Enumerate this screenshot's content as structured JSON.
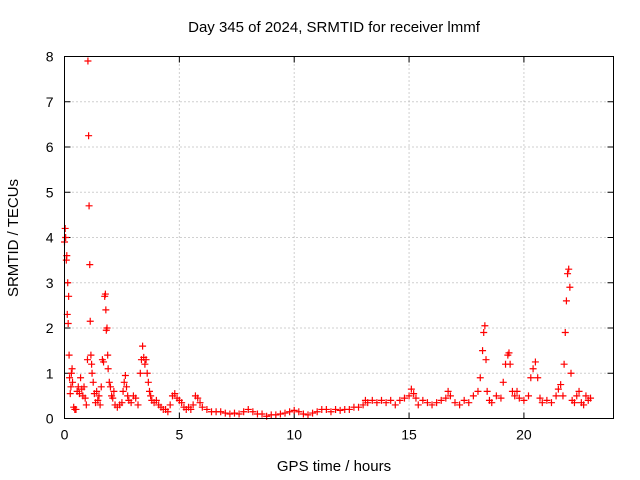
{
  "chart_data": {
    "type": "scatter",
    "title": "Day 345 of 2024, SRMTID for receiver lmmf",
    "xlabel": "GPS time / hours",
    "ylabel": "SRMTID / TECUs",
    "xlim": [
      0,
      23.9
    ],
    "ylim": [
      0,
      8
    ],
    "xticks": [
      0,
      5,
      10,
      15,
      20
    ],
    "yticks": [
      0,
      1,
      2,
      3,
      4,
      5,
      6,
      7,
      8
    ],
    "grid": true,
    "marker": "+",
    "series": [
      {
        "name": "SRMTID",
        "color": "#ff0000",
        "points": [
          [
            0.0,
            3.9
          ],
          [
            0.03,
            4.2
          ],
          [
            0.05,
            4.0
          ],
          [
            0.08,
            3.5
          ],
          [
            0.1,
            3.6
          ],
          [
            0.12,
            2.3
          ],
          [
            0.14,
            3.0
          ],
          [
            0.16,
            2.1
          ],
          [
            0.18,
            2.7
          ],
          [
            0.2,
            1.4
          ],
          [
            0.22,
            0.9
          ],
          [
            0.25,
            0.55
          ],
          [
            0.28,
            0.7
          ],
          [
            0.3,
            1.0
          ],
          [
            0.33,
            1.1
          ],
          [
            0.35,
            0.8
          ],
          [
            0.4,
            0.25
          ],
          [
            0.45,
            0.2
          ],
          [
            0.5,
            0.2
          ],
          [
            0.55,
            0.6
          ],
          [
            0.6,
            0.7
          ],
          [
            0.65,
            0.55
          ],
          [
            0.7,
            0.9
          ],
          [
            0.75,
            0.65
          ],
          [
            0.8,
            0.5
          ],
          [
            0.85,
            0.7
          ],
          [
            0.9,
            0.45
          ],
          [
            0.95,
            0.3
          ],
          [
            1.0,
            1.3
          ],
          [
            1.02,
            7.9
          ],
          [
            1.05,
            6.25
          ],
          [
            1.07,
            4.7
          ],
          [
            1.1,
            3.4
          ],
          [
            1.12,
            2.15
          ],
          [
            1.15,
            1.4
          ],
          [
            1.18,
            1.2
          ],
          [
            1.2,
            1.0
          ],
          [
            1.25,
            0.8
          ],
          [
            1.3,
            0.55
          ],
          [
            1.35,
            0.35
          ],
          [
            1.4,
            0.6
          ],
          [
            1.45,
            0.4
          ],
          [
            1.5,
            0.5
          ],
          [
            1.55,
            0.3
          ],
          [
            1.6,
            0.7
          ],
          [
            1.65,
            1.3
          ],
          [
            1.7,
            1.25
          ],
          [
            1.75,
            2.7
          ],
          [
            1.78,
            2.75
          ],
          [
            1.8,
            2.4
          ],
          [
            1.82,
            1.95
          ],
          [
            1.85,
            2.0
          ],
          [
            1.88,
            1.4
          ],
          [
            1.9,
            1.1
          ],
          [
            1.95,
            0.8
          ],
          [
            2.0,
            0.7
          ],
          [
            2.05,
            0.5
          ],
          [
            2.1,
            0.45
          ],
          [
            2.15,
            0.6
          ],
          [
            2.2,
            0.3
          ],
          [
            2.3,
            0.25
          ],
          [
            2.4,
            0.3
          ],
          [
            2.5,
            0.35
          ],
          [
            2.55,
            0.6
          ],
          [
            2.6,
            0.8
          ],
          [
            2.65,
            0.95
          ],
          [
            2.7,
            0.7
          ],
          [
            2.75,
            0.5
          ],
          [
            2.8,
            0.4
          ],
          [
            2.9,
            0.35
          ],
          [
            3.0,
            0.5
          ],
          [
            3.1,
            0.45
          ],
          [
            3.2,
            0.3
          ],
          [
            3.3,
            1.0
          ],
          [
            3.35,
            1.3
          ],
          [
            3.4,
            1.6
          ],
          [
            3.45,
            1.35
          ],
          [
            3.5,
            1.2
          ],
          [
            3.55,
            1.3
          ],
          [
            3.6,
            1.0
          ],
          [
            3.65,
            0.8
          ],
          [
            3.7,
            0.6
          ],
          [
            3.75,
            0.5
          ],
          [
            3.8,
            0.4
          ],
          [
            3.9,
            0.35
          ],
          [
            4.0,
            0.4
          ],
          [
            4.1,
            0.3
          ],
          [
            4.2,
            0.25
          ],
          [
            4.3,
            0.2
          ],
          [
            4.4,
            0.2
          ],
          [
            4.5,
            0.15
          ],
          [
            4.6,
            0.3
          ],
          [
            4.7,
            0.5
          ],
          [
            4.8,
            0.55
          ],
          [
            4.9,
            0.45
          ],
          [
            5.0,
            0.4
          ],
          [
            5.1,
            0.35
          ],
          [
            5.2,
            0.25
          ],
          [
            5.3,
            0.2
          ],
          [
            5.4,
            0.25
          ],
          [
            5.5,
            0.2
          ],
          [
            5.6,
            0.3
          ],
          [
            5.7,
            0.5
          ],
          [
            5.8,
            0.45
          ],
          [
            5.9,
            0.35
          ],
          [
            6.0,
            0.25
          ],
          [
            6.2,
            0.2
          ],
          [
            6.4,
            0.15
          ],
          [
            6.6,
            0.15
          ],
          [
            6.8,
            0.15
          ],
          [
            7.0,
            0.12
          ],
          [
            7.2,
            0.1
          ],
          [
            7.4,
            0.12
          ],
          [
            7.6,
            0.1
          ],
          [
            7.8,
            0.15
          ],
          [
            8.0,
            0.2
          ],
          [
            8.2,
            0.15
          ],
          [
            8.4,
            0.1
          ],
          [
            8.6,
            0.1
          ],
          [
            8.8,
            0.05
          ],
          [
            9.0,
            0.08
          ],
          [
            9.2,
            0.08
          ],
          [
            9.4,
            0.1
          ],
          [
            9.6,
            0.12
          ],
          [
            9.8,
            0.15
          ],
          [
            10.0,
            0.18
          ],
          [
            10.2,
            0.15
          ],
          [
            10.4,
            0.1
          ],
          [
            10.6,
            0.08
          ],
          [
            10.8,
            0.12
          ],
          [
            11.0,
            0.15
          ],
          [
            11.2,
            0.2
          ],
          [
            11.4,
            0.2
          ],
          [
            11.6,
            0.15
          ],
          [
            11.8,
            0.2
          ],
          [
            12.0,
            0.18
          ],
          [
            12.2,
            0.2
          ],
          [
            12.4,
            0.2
          ],
          [
            12.6,
            0.25
          ],
          [
            12.8,
            0.25
          ],
          [
            13.0,
            0.3
          ],
          [
            13.1,
            0.4
          ],
          [
            13.2,
            0.35
          ],
          [
            13.4,
            0.4
          ],
          [
            13.6,
            0.35
          ],
          [
            13.8,
            0.4
          ],
          [
            14.0,
            0.35
          ],
          [
            14.2,
            0.4
          ],
          [
            14.4,
            0.3
          ],
          [
            14.6,
            0.4
          ],
          [
            14.8,
            0.45
          ],
          [
            15.0,
            0.5
          ],
          [
            15.1,
            0.65
          ],
          [
            15.2,
            0.55
          ],
          [
            15.3,
            0.45
          ],
          [
            15.4,
            0.3
          ],
          [
            15.6,
            0.4
          ],
          [
            15.8,
            0.35
          ],
          [
            16.0,
            0.3
          ],
          [
            16.2,
            0.35
          ],
          [
            16.4,
            0.4
          ],
          [
            16.6,
            0.45
          ],
          [
            16.7,
            0.6
          ],
          [
            16.8,
            0.5
          ],
          [
            17.0,
            0.35
          ],
          [
            17.2,
            0.3
          ],
          [
            17.4,
            0.4
          ],
          [
            17.6,
            0.35
          ],
          [
            17.8,
            0.5
          ],
          [
            18.0,
            0.6
          ],
          [
            18.1,
            0.9
          ],
          [
            18.2,
            1.5
          ],
          [
            18.25,
            1.9
          ],
          [
            18.3,
            2.05
          ],
          [
            18.35,
            1.3
          ],
          [
            18.4,
            0.6
          ],
          [
            18.5,
            0.4
          ],
          [
            18.6,
            0.35
          ],
          [
            18.8,
            0.5
          ],
          [
            19.0,
            0.45
          ],
          [
            19.1,
            0.8
          ],
          [
            19.2,
            1.2
          ],
          [
            19.3,
            1.4
          ],
          [
            19.35,
            1.45
          ],
          [
            19.4,
            1.2
          ],
          [
            19.5,
            0.6
          ],
          [
            19.6,
            0.5
          ],
          [
            19.7,
            0.6
          ],
          [
            19.8,
            0.45
          ],
          [
            20.0,
            0.4
          ],
          [
            20.2,
            0.5
          ],
          [
            20.3,
            0.9
          ],
          [
            20.4,
            1.1
          ],
          [
            20.5,
            1.25
          ],
          [
            20.6,
            0.9
          ],
          [
            20.7,
            0.45
          ],
          [
            20.8,
            0.35
          ],
          [
            21.0,
            0.4
          ],
          [
            21.2,
            0.35
          ],
          [
            21.4,
            0.5
          ],
          [
            21.5,
            0.65
          ],
          [
            21.6,
            0.75
          ],
          [
            21.7,
            0.5
          ],
          [
            21.75,
            1.2
          ],
          [
            21.8,
            1.9
          ],
          [
            21.85,
            2.6
          ],
          [
            21.9,
            3.2
          ],
          [
            21.95,
            3.3
          ],
          [
            22.0,
            2.9
          ],
          [
            22.05,
            1.0
          ],
          [
            22.1,
            0.4
          ],
          [
            22.2,
            0.35
          ],
          [
            22.3,
            0.5
          ],
          [
            22.4,
            0.6
          ],
          [
            22.5,
            0.35
          ],
          [
            22.6,
            0.3
          ],
          [
            22.7,
            0.5
          ],
          [
            22.8,
            0.4
          ],
          [
            22.9,
            0.45
          ]
        ]
      }
    ]
  }
}
